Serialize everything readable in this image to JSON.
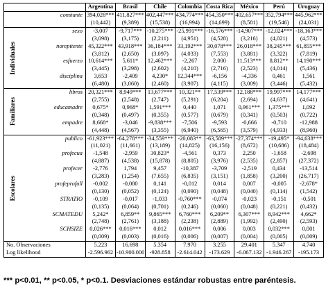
{
  "table": {
    "columns": [
      "Argentina",
      "Brasil",
      "Chile",
      "Colombia",
      "Costa Rica",
      "México",
      "Perú",
      "Uruguay"
    ],
    "constant": {
      "name": "constante",
      "coef": [
        "394,028***",
        "411,827***",
        "402,447***",
        "434,774***",
        "454,350***",
        "402,657***",
        "352,794***",
        "445,962***"
      ],
      "se": [
        "(10,442)",
        "(9,389)",
        "(15,538)",
        "(16,994)",
        "(14,699)",
        "(8,581)",
        "(19,546)",
        "(24,031)"
      ]
    },
    "groups": [
      {
        "label": "Individuales",
        "rows": [
          {
            "name": "sexo",
            "coef": [
              "-3,007",
              "-9,717***",
              "-10,275***",
              "-25,991***",
              "-16,576***",
              "-14,907***",
              "-12,024***",
              "-18,163***"
            ],
            "se": [
              "(3,098)",
              "(3,175)",
              "(2,211)",
              "(4,951)",
              "(4,528)",
              "(3,216)",
              "(4,021)",
              "(4,573)"
            ]
          },
          {
            "name": "norepitente",
            "coef": [
              "45,322***",
              "43,918***",
              "36,184***",
              "33,192***",
              "30,078***",
              "26,018***",
              "38,245***",
              "61,855***"
            ],
            "se": [
              "(3,812)",
              "(2,650)",
              "(3,097)",
              "(4,033)",
              "(7,553)",
              "(3,881)",
              "(3,322)",
              "(7,819)"
            ]
          },
          {
            "name": "esfuerzo",
            "coef": [
              "10,614***",
              "5,611*",
              "12,462***",
              "-2,267",
              "2,000",
              "11,513***",
              "8,812**",
              "14,190***"
            ],
            "se": [
              "(3,445)",
              "(3,298)",
              "(2,602)",
              "(4,210)",
              "(2,716)",
              "(2,523)",
              "(4,014)",
              "(5,436)"
            ]
          },
          {
            "name": "disciplina",
            "coef": [
              "3,653",
              "-2,409",
              "4,230*",
              "12,344***",
              "-6,156",
              "-4,336",
              "0,461",
              "1,561"
            ],
            "se": [
              "(6,480)",
              "(3,060)",
              "(2,460)",
              "(3,907)",
              "(4,115)",
              "(3,009)",
              "(3,446)",
              "(5,432)"
            ]
          }
        ]
      },
      {
        "label": "Familiares",
        "rows": [
          {
            "name": "libros",
            "coef": [
              "20,321***",
              "8,949***",
              "13,677***",
              "10,321**",
              "17,539***",
              "12,188***",
              "19,997***",
              "14,177***"
            ],
            "se": [
              "(2,755)",
              "(2,548)",
              "(2,747)",
              "(5,291)",
              "(6,204)",
              "(2,694)",
              "(4,637)",
              "(4,641)"
            ]
          },
          {
            "name": "educamadre",
            "coef": [
              "0,675*",
              "0,968*",
              "1,591***",
              "0,440",
              "1,071",
              "0,961***",
              "1,375***",
              "1,092"
            ],
            "se": [
              "(0,348)",
              "(0,497)",
              "(0,355)",
              "(0,577)",
              "(0,679)",
              "(0,341)",
              "(0,503)",
              "(0,722)"
            ]
          },
          {
            "name": "empadre",
            "coef": [
              "8,668*",
              "-3,046",
              "-9,838***",
              "-7,506",
              "-9,593",
              "-0,666",
              "-0,710",
              "-12,988"
            ],
            "se": [
              "(4,448)",
              "(4,567)",
              "(3,355)",
              "(6,940)",
              "(6,565)",
              "(3,579)",
              "(4,933)",
              "(8,960)"
            ]
          }
        ]
      },
      {
        "label": "Escolares",
        "rows": [
          {
            "name": "publico",
            "coef": [
              "-61,923***",
              "-64,278***",
              "-34,559***",
              "-20,083**",
              "-63,589***",
              "-27,374***",
              "-19,495*",
              "-94,638***"
            ],
            "se": [
              "(11,021)",
              "(11,661)",
              "(13,189)",
              "(14,825)",
              "(16,156)",
              "(8,672)",
              "(10,686)",
              "(18,484)"
            ]
          },
          {
            "name": "profecua",
            "coef": [
              "-1,548",
              "-2,959",
              "30,823*",
              "-4,561",
              "0,373",
              "2,250",
              "-1,658",
              "-2,698"
            ],
            "se": [
              "(4,887)",
              "(4,538)",
              "(15,878)",
              "(8,805)",
              "(3,976)",
              "(2,535)",
              "(2,857)",
              "(27,372)"
            ]
          },
          {
            "name": "profecer",
            "coef": [
              "-2,776",
              "1,794",
              "9,457",
              "-10,387",
              "-3,709",
              "-2,519",
              "0,434",
              "-13,514"
            ],
            "se": [
              "(3,283)",
              "(1,254)",
              "(7,655)",
              "(6,835)",
              "(3,151)",
              "(1,858)",
              "(3,200)",
              "(26,717)"
            ]
          },
          {
            "name": "profeprofull",
            "coef": [
              "-0,002",
              "-0,080",
              "0,141",
              "-0,012",
              "0,014",
              "0,007",
              "-0,005",
              "-2,678*"
            ],
            "se": [
              "(0,130)",
              "(0,052)",
              "(0,124)",
              "(0,090)",
              "(0,048)",
              "(0,040)",
              "(0,114)",
              "(1,542)"
            ]
          },
          {
            "name": "STRATIO",
            "coef": [
              "-0,109",
              "-0,017",
              "-1,033",
              "-0,760***",
              "-0,074",
              "-0,023",
              "-0,151",
              "-0,501"
            ],
            "se": [
              "(0,135)",
              "(0,064)",
              "(0,701)",
              "(0,246)",
              "(0,060)",
              "(0,048)",
              "(0,221)",
              "(0,432)"
            ]
          },
          {
            "name": "SCMATEDU",
            "coef": [
              "5,242*",
              "6,859**",
              "9,865***",
              "6,760***",
              "6,209**",
              "6,307***",
              "8,942***",
              "4,662*"
            ],
            "se": [
              "(2,748)",
              "(2,761)",
              "(3,188)",
              "(2,238)",
              "(2,889)",
              "(1,992)",
              "(2,490)",
              "(2,593)"
            ]
          },
          {
            "name": "SCHSIZE",
            "coef": [
              "0,026***",
              "0,016***",
              "0,012",
              "0,016***",
              "0,006",
              "0,003",
              "0,032***",
              "0,001"
            ],
            "se": [
              "(0,009)",
              "(0,003)",
              "(0,016)",
              "(0,006)",
              "(0,007)",
              "(0,004)",
              "(0,005)",
              "(0,009)"
            ]
          }
        ]
      }
    ],
    "stats": [
      {
        "name": "No. Observaciones",
        "values": [
          "5.223",
          "16.698",
          "5.354",
          "7.970",
          "3.255",
          "29.401",
          "5.347",
          "4.740"
        ]
      },
      {
        "name": "Log likelihood",
        "values": [
          "-2.596.962",
          "-10.900.000",
          "-928.858",
          "-2.614.042",
          "-173.629",
          "-6.067.132",
          "-1.946.267",
          "-195.173"
        ]
      }
    ]
  },
  "footnote": "*** p<0.01, ** p<0.05, * p<0.1. Desviaciones estándar robustas entre paréntesis."
}
